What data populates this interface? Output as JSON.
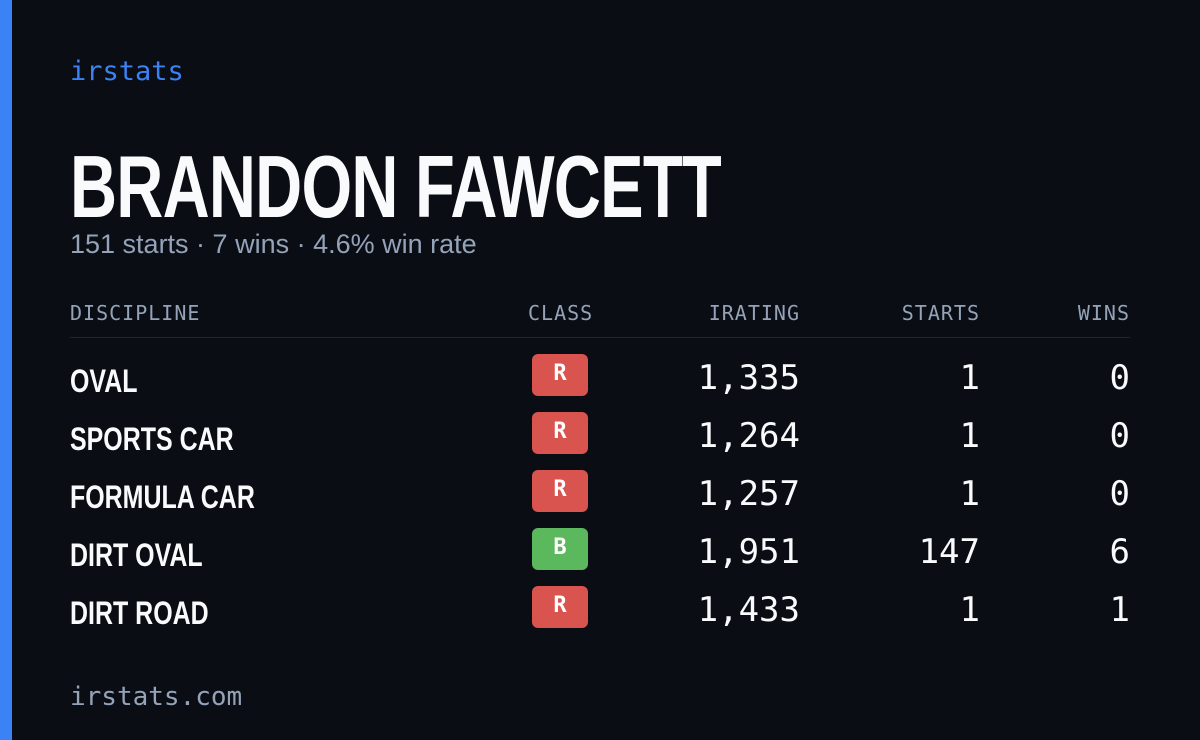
{
  "brand": "irstats",
  "title": "BRANDON FAWCETT",
  "subtitle": "151 starts · 7 wins · 4.6% win rate",
  "table": {
    "headers": [
      "DISCIPLINE",
      "CLASS",
      "IRATING",
      "STARTS",
      "WINS"
    ],
    "rows": [
      {
        "discipline": "OVAL",
        "class": "R",
        "class_color": "#d9534f",
        "irating": "1,335",
        "starts": "1",
        "wins": "0"
      },
      {
        "discipline": "SPORTS CAR",
        "class": "R",
        "class_color": "#d9534f",
        "irating": "1,264",
        "starts": "1",
        "wins": "0"
      },
      {
        "discipline": "FORMULA CAR",
        "class": "R",
        "class_color": "#d9534f",
        "irating": "1,257",
        "starts": "1",
        "wins": "0"
      },
      {
        "discipline": "DIRT OVAL",
        "class": "B",
        "class_color": "#5cb85c",
        "irating": "1,951",
        "starts": "147",
        "wins": "6"
      },
      {
        "discipline": "DIRT ROAD",
        "class": "R",
        "class_color": "#d9534f",
        "irating": "1,433",
        "starts": "1",
        "wins": "1"
      }
    ]
  },
  "footer": "irstats.com"
}
